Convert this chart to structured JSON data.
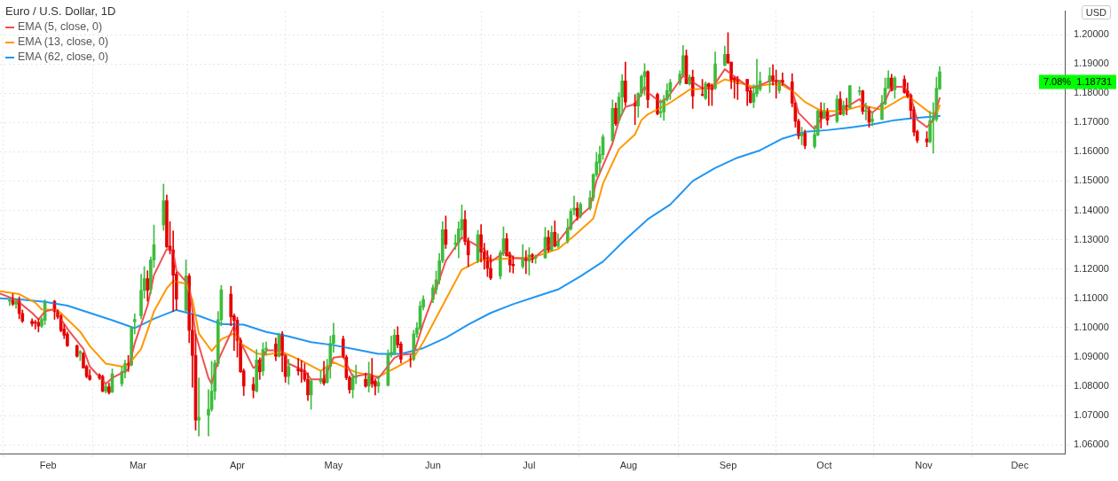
{
  "chart_data": {
    "type": "candlestick",
    "title": "Euro / U.S. Dollar, 1D",
    "ylabel": "USD",
    "grid": true,
    "legend": "top left",
    "xlim": [
      "--01-17",
      "--12-15"
    ],
    "xticks": [
      {
        "value": "--02-01",
        "label": "Feb"
      },
      {
        "value": "--03-01",
        "label": "Mar"
      },
      {
        "value": "--04-01",
        "label": "Apr"
      },
      {
        "value": "--05-01",
        "label": "May"
      },
      {
        "value": "--06-01",
        "label": "Jun"
      },
      {
        "value": "--07-01",
        "label": "Jul"
      },
      {
        "value": "--08-01",
        "label": "Aug"
      },
      {
        "value": "--09-01",
        "label": "Sep"
      },
      {
        "value": "--10-01",
        "label": "Oct"
      },
      {
        "value": "--11-01",
        "label": "Nov"
      },
      {
        "value": "--12-01",
        "label": "Dec"
      }
    ],
    "ylim": [
      1.057,
      1.208
    ],
    "yticks": [
      {
        "value": 1.06,
        "label": "1.06000"
      },
      {
        "value": 1.07,
        "label": "1.07000"
      },
      {
        "value": 1.08,
        "label": "1.08000"
      },
      {
        "value": 1.09,
        "label": "1.09000"
      },
      {
        "value": 1.1,
        "label": "1.10000"
      },
      {
        "value": 1.11,
        "label": "1.11000"
      },
      {
        "value": 1.12,
        "label": "1.12000"
      },
      {
        "value": 1.13,
        "label": "1.13000"
      },
      {
        "value": 1.14,
        "label": "1.14000"
      },
      {
        "value": 1.15,
        "label": "1.15000"
      },
      {
        "value": 1.16,
        "label": "1.16000"
      },
      {
        "value": 1.17,
        "label": "1.17000"
      },
      {
        "value": 1.18,
        "label": "1.18000"
      },
      {
        "value": 1.19,
        "label": "1.19000"
      },
      {
        "value": 1.2,
        "label": "1.20000"
      }
    ],
    "x": [
      "--01-20",
      "--01-21",
      "--01-22",
      "--01-23",
      "--01-24",
      "--01-27",
      "--01-28",
      "--01-29",
      "--01-30",
      "--01-31",
      "--02-03",
      "--02-04",
      "--02-05",
      "--02-06",
      "--02-07",
      "--02-10",
      "--02-11",
      "--02-12",
      "--02-13",
      "--02-14",
      "--02-17",
      "--02-18",
      "--02-19",
      "--02-20",
      "--02-21",
      "--02-24",
      "--02-25",
      "--02-26",
      "--02-27",
      "--02-28",
      "--03-02",
      "--03-03",
      "--03-04",
      "--03-05",
      "--03-06",
      "--03-09",
      "--03-10",
      "--03-11",
      "--03-12",
      "--03-13",
      "--03-16",
      "--03-17",
      "--03-18",
      "--03-19",
      "--03-20",
      "--03-23",
      "--03-24",
      "--03-25",
      "--03-26",
      "--03-27",
      "--03-30",
      "--03-31",
      "--04-01",
      "--04-02",
      "--04-03",
      "--04-06",
      "--04-07",
      "--04-08",
      "--04-09",
      "--04-10",
      "--04-13",
      "--04-14",
      "--04-15",
      "--04-16",
      "--04-17",
      "--04-20",
      "--04-21",
      "--04-22",
      "--04-23",
      "--04-24",
      "--04-27",
      "--04-28",
      "--04-29",
      "--04-30",
      "--05-01",
      "--05-04",
      "--05-05",
      "--05-06",
      "--05-07",
      "--05-08",
      "--05-11",
      "--05-12",
      "--05-13",
      "--05-14",
      "--05-15",
      "--05-18",
      "--05-19",
      "--05-20",
      "--05-21",
      "--05-22",
      "--05-25",
      "--05-26",
      "--05-27",
      "--05-28",
      "--05-29",
      "--06-01",
      "--06-02",
      "--06-03",
      "--06-04",
      "--06-05",
      "--06-08",
      "--06-09",
      "--06-10",
      "--06-11",
      "--06-12",
      "--06-15",
      "--06-16",
      "--06-17",
      "--06-18",
      "--06-19",
      "--06-22",
      "--06-23",
      "--06-24",
      "--06-25",
      "--06-26",
      "--06-29",
      "--06-30",
      "--07-01",
      "--07-02",
      "--07-03",
      "--07-06",
      "--07-07",
      "--07-08",
      "--07-09",
      "--07-10",
      "--07-13",
      "--07-14",
      "--07-15",
      "--07-16",
      "--07-17",
      "--07-20",
      "--07-21",
      "--07-22",
      "--07-23",
      "--07-24",
      "--07-27",
      "--07-28",
      "--07-29",
      "--07-30",
      "--07-31",
      "--08-03",
      "--08-04",
      "--08-05",
      "--08-06",
      "--08-07",
      "--08-10",
      "--08-11",
      "--08-12",
      "--08-13",
      "--08-14",
      "--08-17",
      "--08-18",
      "--08-19",
      "--08-20",
      "--08-21",
      "--08-24",
      "--08-25",
      "--08-26",
      "--08-27",
      "--08-28",
      "--08-31",
      "--09-01",
      "--09-02",
      "--09-03",
      "--09-04",
      "--09-07",
      "--09-08",
      "--09-09",
      "--09-10",
      "--09-11",
      "--09-14",
      "--09-15",
      "--09-16",
      "--09-17",
      "--09-18",
      "--09-21",
      "--09-22",
      "--09-23",
      "--09-24",
      "--09-25",
      "--09-28",
      "--09-29",
      "--09-30",
      "--10-01",
      "--10-02",
      "--10-05",
      "--10-06",
      "--10-07",
      "--10-08",
      "--10-09",
      "--10-12",
      "--10-13",
      "--10-14",
      "--10-15",
      "--10-16",
      "--10-19",
      "--10-20",
      "--10-21",
      "--10-22",
      "--10-23",
      "--10-26",
      "--10-27",
      "--10-28",
      "--10-29",
      "--10-30",
      "--11-02",
      "--11-03",
      "--11-04",
      "--11-05",
      "--11-06"
    ],
    "ohlc": [
      [
        1.109,
        1.11,
        1.1075,
        1.1093
      ],
      [
        1.1093,
        1.1115,
        1.1075,
        1.108
      ],
      [
        1.108,
        1.11,
        1.1065,
        1.109
      ],
      [
        1.109,
        1.1105,
        1.103,
        1.1048
      ],
      [
        1.1048,
        1.106,
        1.1017,
        1.1022
      ],
      [
        1.1022,
        1.103,
        1.1005,
        1.1013
      ],
      [
        1.1018,
        1.1025,
        1.0995,
        1.1015
      ],
      [
        1.1018,
        1.103,
        1.0985,
        1.1005
      ],
      [
        1.1005,
        1.1035,
        1.1,
        1.1028
      ],
      [
        1.1025,
        1.1095,
        1.101,
        1.109
      ],
      [
        1.109,
        1.1093,
        1.1028,
        1.1055
      ],
      [
        1.1055,
        1.106,
        1.103,
        1.1037
      ],
      [
        1.104,
        1.1045,
        1.0985,
        1.099
      ],
      [
        1.0995,
        1.101,
        1.0962,
        1.0974
      ],
      [
        1.0978,
        1.0985,
        1.0935,
        1.0938
      ],
      [
        1.0938,
        1.0941,
        1.0899,
        1.0902
      ],
      [
        1.0912,
        1.0922,
        1.0887,
        1.0918
      ],
      [
        1.0912,
        1.0915,
        1.0862,
        1.0862
      ],
      [
        1.0867,
        1.0872,
        1.0828,
        1.0833
      ],
      [
        1.0836,
        1.0857,
        1.082,
        1.0823
      ],
      [
        1.0838,
        1.0843,
        1.0823,
        1.0828
      ],
      [
        1.0833,
        1.0838,
        1.078,
        1.0783
      ],
      [
        1.0783,
        1.0808,
        1.0776,
        1.0798
      ],
      [
        1.0798,
        1.081,
        1.0773,
        1.0778
      ],
      [
        1.078,
        1.0859,
        1.0778,
        1.0842
      ],
      [
        1.0808,
        1.0867,
        1.08,
        1.085
      ],
      [
        1.0847,
        1.0889,
        1.0828,
        1.0877
      ],
      [
        1.0877,
        1.0905,
        1.085,
        1.0872
      ],
      [
        1.0872,
        1.1004,
        1.0869,
        1.0998
      ],
      [
        1.102,
        1.1047,
        1.0978,
        1.1028
      ],
      [
        1.104,
        1.1182,
        1.103,
        1.1127
      ],
      [
        1.1127,
        1.1208,
        1.11,
        1.1167
      ],
      [
        1.1167,
        1.1194,
        1.109,
        1.1127
      ],
      [
        1.113,
        1.1241,
        1.1115,
        1.1231
      ],
      [
        1.1231,
        1.135,
        1.1205,
        1.1283
      ],
      [
        1.135,
        1.149,
        1.1332,
        1.1433
      ],
      [
        1.1433,
        1.1453,
        1.1273,
        1.1275
      ],
      [
        1.1278,
        1.1362,
        1.1251,
        1.1263
      ],
      [
        1.1265,
        1.133,
        1.1055,
        1.1179
      ],
      [
        1.1182,
        1.1189,
        1.106,
        1.1097
      ],
      [
        1.1059,
        1.1231,
        1.1055,
        1.1176
      ],
      [
        1.1176,
        1.1184,
        1.0948,
        1.0991
      ],
      [
        1.0991,
        1.1045,
        1.0796,
        1.0905
      ],
      [
        1.0905,
        1.0978,
        1.065,
        1.0684
      ],
      [
        1.0684,
        1.0828,
        1.063,
        1.0694
      ],
      [
        1.0701,
        1.0788,
        1.063,
        1.0721
      ],
      [
        1.0721,
        1.0885,
        1.0714,
        1.0783
      ],
      [
        1.0783,
        1.0889,
        1.0754,
        1.0879
      ],
      [
        1.0877,
        1.1055,
        1.0867,
        1.1027
      ],
      [
        1.1027,
        1.1144,
        1.1006,
        1.1129
      ],
      [
        1.1114,
        1.1141,
        1.1006,
        1.1037
      ],
      [
        1.104,
        1.1047,
        1.0922,
        1.1024
      ],
      [
        1.1025,
        1.1035,
        1.0899,
        1.0956
      ],
      [
        1.0956,
        1.0964,
        1.0847,
        1.0849
      ],
      [
        1.0852,
        1.0859,
        1.0768,
        1.08
      ],
      [
        1.0806,
        1.083,
        1.076,
        1.0786
      ],
      [
        1.0783,
        1.0925,
        1.078,
        1.0889
      ],
      [
        1.0889,
        1.0897,
        1.0823,
        1.0849
      ],
      [
        1.0852,
        1.0948,
        1.0836,
        1.0925
      ],
      [
        1.0925,
        1.0951,
        1.0907,
        1.093
      ],
      [
        1.0944,
        1.0964,
        1.0887,
        1.0902
      ],
      [
        1.0902,
        1.0981,
        1.0899,
        1.0978
      ],
      [
        1.0978,
        1.0986,
        1.0849,
        1.0905
      ],
      [
        1.0905,
        1.0907,
        1.0813,
        1.0833
      ],
      [
        1.0833,
        1.0892,
        1.0806,
        1.0867
      ],
      [
        1.0859,
        1.0895,
        1.0838,
        1.0852
      ],
      [
        1.0856,
        1.0887,
        1.0813,
        1.085
      ],
      [
        1.0852,
        1.0877,
        1.0816,
        1.0823
      ],
      [
        1.0823,
        1.0846,
        1.0751,
        1.077
      ],
      [
        1.077,
        1.0823,
        1.0721,
        1.0818
      ],
      [
        1.0816,
        1.0852,
        1.0808,
        1.0826
      ],
      [
        1.0826,
        1.0885,
        1.0803,
        1.081
      ],
      [
        1.0813,
        1.0892,
        1.081,
        1.0867
      ],
      [
        1.0867,
        1.0971,
        1.0827,
        1.0946
      ],
      [
        1.0946,
        1.1015,
        1.0916,
        1.0974
      ],
      [
        1.0961,
        1.0971,
        1.0897,
        1.0899
      ],
      [
        1.0899,
        1.0906,
        1.0822,
        1.0829
      ],
      [
        1.0829,
        1.0835,
        1.0776,
        1.0788
      ],
      [
        1.0788,
        1.0842,
        1.076,
        1.0829
      ],
      [
        1.0829,
        1.0872,
        1.0808,
        1.0834
      ],
      [
        1.0823,
        1.0845,
        1.0796,
        1.08
      ],
      [
        1.08,
        1.0882,
        1.078,
        1.0842
      ],
      [
        1.0837,
        1.0895,
        1.0796,
        1.0808
      ],
      [
        1.0817,
        1.0825,
        1.077,
        1.08
      ],
      [
        1.08,
        1.0835,
        1.0778,
        1.0813
      ],
      [
        1.0803,
        1.0924,
        1.08,
        1.0908
      ],
      [
        1.0906,
        1.0971,
        1.0899,
        1.0916
      ],
      [
        1.0914,
        1.0994,
        1.0906,
        1.0974
      ],
      [
        1.0974,
        1.1003,
        1.0931,
        1.0941
      ],
      [
        1.0944,
        1.0951,
        1.0879,
        1.0892
      ],
      [
        1.0892,
        1.0906,
        1.0865,
        1.089
      ],
      [
        1.0892,
        1.0991,
        1.0887,
        1.0978
      ],
      [
        1.0978,
        1.1017,
        1.0966,
        1.0999
      ],
      [
        1.0997,
        1.1089,
        1.0991,
        1.1073
      ],
      [
        1.107,
        1.1109,
        1.106,
        1.1096
      ],
      [
        1.1096,
        1.1146,
        1.1085,
        1.1136
      ],
      [
        1.1129,
        1.1193,
        1.1114,
        1.1163
      ],
      [
        1.1162,
        1.1253,
        1.1149,
        1.1228
      ],
      [
        1.1228,
        1.1361,
        1.1221,
        1.1334
      ],
      [
        1.1334,
        1.1381,
        1.127,
        1.1284
      ],
      [
        1.1285,
        1.1317,
        1.1267,
        1.1289
      ],
      [
        1.1289,
        1.1361,
        1.1238,
        1.1337
      ],
      [
        1.1334,
        1.1419,
        1.1307,
        1.1369
      ],
      [
        1.1369,
        1.1399,
        1.1282,
        1.1294
      ],
      [
        1.1294,
        1.1307,
        1.1208,
        1.1248
      ],
      [
        1.1228,
        1.1332,
        1.1221,
        1.1317
      ],
      [
        1.1317,
        1.1351,
        1.1223,
        1.1258
      ],
      [
        1.1258,
        1.1288,
        1.1199,
        1.1233
      ],
      [
        1.1238,
        1.1263,
        1.1174,
        1.1202
      ],
      [
        1.1202,
        1.1248,
        1.1164,
        1.1169
      ],
      [
        1.1176,
        1.1263,
        1.1166,
        1.1255
      ],
      [
        1.1253,
        1.1344,
        1.1245,
        1.1303
      ],
      [
        1.1303,
        1.1321,
        1.1243,
        1.1245
      ],
      [
        1.1248,
        1.1258,
        1.1189,
        1.1214
      ],
      [
        1.1216,
        1.1245,
        1.1186,
        1.1211
      ],
      [
        1.1209,
        1.1283,
        1.1202,
        1.1238
      ],
      [
        1.1236,
        1.1263,
        1.1184,
        1.1229
      ],
      [
        1.1226,
        1.1273,
        1.1179,
        1.1248
      ],
      [
        1.1248,
        1.1253,
        1.1221,
        1.1233
      ],
      [
        1.1236,
        1.1248,
        1.1219,
        1.1241
      ],
      [
        1.1238,
        1.1342,
        1.1236,
        1.1308
      ],
      [
        1.1308,
        1.1331,
        1.1258,
        1.1265
      ],
      [
        1.1263,
        1.1347,
        1.1263,
        1.1325
      ],
      [
        1.1325,
        1.1364,
        1.1275,
        1.1278
      ],
      [
        1.1278,
        1.132,
        1.1273,
        1.1295
      ],
      [
        1.1295,
        1.1371,
        1.1288,
        1.134
      ],
      [
        1.1337,
        1.1406,
        1.1332,
        1.1397
      ],
      [
        1.14,
        1.1449,
        1.1384,
        1.1407
      ],
      [
        1.1407,
        1.1427,
        1.1367,
        1.138
      ],
      [
        1.138,
        1.1427,
        1.1374,
        1.1421
      ],
      [
        1.1407,
        1.1466,
        1.1402,
        1.1443
      ],
      [
        1.1443,
        1.1525,
        1.1433,
        1.1522
      ],
      [
        1.1522,
        1.1598,
        1.1515,
        1.1565
      ],
      [
        1.1562,
        1.1619,
        1.1532,
        1.1591
      ],
      [
        1.159,
        1.1659,
        1.1574,
        1.1651
      ],
      [
        1.1637,
        1.1777,
        1.1637,
        1.1748
      ],
      [
        1.1748,
        1.1767,
        1.169,
        1.1696
      ],
      [
        1.1708,
        1.1802,
        1.1698,
        1.1787
      ],
      [
        1.1787,
        1.1864,
        1.1726,
        1.1842
      ],
      [
        1.1842,
        1.1906,
        1.1758,
        1.177
      ],
      [
        1.1766,
        1.1795,
        1.1693,
        1.1756
      ],
      [
        1.1756,
        1.1802,
        1.1718,
        1.1799
      ],
      [
        1.1799,
        1.1862,
        1.1789,
        1.1857
      ],
      [
        1.1857,
        1.1901,
        1.1793,
        1.1874
      ],
      [
        1.1874,
        1.1877,
        1.175,
        1.1778
      ],
      [
        1.1796,
        1.18,
        1.1726,
        1.173
      ],
      [
        1.1733,
        1.1778,
        1.1718,
        1.1738
      ],
      [
        1.1736,
        1.1793,
        1.1707,
        1.1778
      ],
      [
        1.1778,
        1.1832,
        1.1773,
        1.1809
      ],
      [
        1.1807,
        1.1847,
        1.1778,
        1.1837
      ],
      [
        1.1835,
        1.1877,
        1.1827,
        1.1865
      ],
      [
        1.1862,
        1.1963,
        1.1862,
        1.1928
      ],
      [
        1.1928,
        1.1948,
        1.1832,
        1.1832
      ],
      [
        1.1832,
        1.1862,
        1.1827,
        1.1855
      ],
      [
        1.1855,
        1.1879,
        1.1748,
        1.179
      ],
      [
        1.1796,
        1.1847,
        1.179,
        1.1793
      ],
      [
        1.1783,
        1.1839,
        1.1778,
        1.1832
      ],
      [
        1.1832,
        1.1835,
        1.1758,
        1.1822
      ],
      [
        1.1827,
        1.1832,
        1.1758,
        1.1812
      ],
      [
        1.1817,
        1.1941,
        1.1812,
        1.19
      ],
      [
        1.1895,
        1.1961,
        1.1893,
        1.1933
      ],
      [
        1.1933,
        1.2007,
        1.1901,
        1.1904
      ],
      [
        1.1906,
        1.1906,
        1.1815,
        1.1847
      ],
      [
        1.1852,
        1.1855,
        1.1783,
        1.1845
      ],
      [
        1.1847,
        1.1857,
        1.1778,
        1.1832
      ],
      [
        1.1847,
        1.1847,
        1.1758,
        1.1807
      ],
      [
        1.1809,
        1.1817,
        1.1766,
        1.1768
      ],
      [
        1.177,
        1.1829,
        1.175,
        1.18
      ],
      [
        1.1798,
        1.1916,
        1.1788,
        1.1827
      ],
      [
        1.1814,
        1.1872,
        1.1807,
        1.1842
      ],
      [
        1.1839,
        1.1887,
        1.1802,
        1.1859
      ],
      [
        1.1859,
        1.1897,
        1.1827,
        1.1842
      ],
      [
        1.1845,
        1.1879,
        1.1783,
        1.1837
      ],
      [
        1.1809,
        1.1845,
        1.18,
        1.1844
      ],
      [
        1.1844,
        1.1869,
        1.1827,
        1.1837
      ],
      [
        1.1839,
        1.1867,
        1.1753,
        1.1766
      ],
      [
        1.1766,
        1.1768,
        1.1684,
        1.1704
      ],
      [
        1.1704,
        1.1711,
        1.1644,
        1.1654
      ],
      [
        1.1654,
        1.1684,
        1.1624,
        1.1664
      ],
      [
        1.1664,
        1.1674,
        1.161,
        1.1621
      ],
      [
        1.1618,
        1.1689,
        1.1612,
        1.1659
      ],
      [
        1.1657,
        1.1743,
        1.1654,
        1.174
      ],
      [
        1.1738,
        1.1768,
        1.1681,
        1.1716
      ],
      [
        1.1716,
        1.1766,
        1.1714,
        1.1738
      ],
      [
        1.1738,
        1.1748,
        1.1691,
        1.1708
      ],
      [
        1.1704,
        1.1793,
        1.1699,
        1.178
      ],
      [
        1.178,
        1.1805,
        1.1726,
        1.1728
      ],
      [
        1.1728,
        1.1773,
        1.1723,
        1.1758
      ],
      [
        1.1758,
        1.1783,
        1.1726,
        1.1755
      ],
      [
        1.175,
        1.1827,
        1.1748,
        1.1825
      ],
      [
        1.1805,
        1.1822,
        1.1793,
        1.1808
      ],
      [
        1.1808,
        1.181,
        1.1728,
        1.1738
      ],
      [
        1.1738,
        1.1766,
        1.1709,
        1.1741
      ],
      [
        1.174,
        1.1753,
        1.1684,
        1.1701
      ],
      [
        1.1704,
        1.1738,
        1.1689,
        1.1711
      ],
      [
        1.1711,
        1.1793,
        1.1709,
        1.1766
      ],
      [
        1.1763,
        1.1852,
        1.176,
        1.1817
      ],
      [
        1.1817,
        1.1877,
        1.1815,
        1.1852
      ],
      [
        1.1852,
        1.1865,
        1.1807,
        1.1809
      ],
      [
        1.1812,
        1.1857,
        1.1783,
        1.1852
      ],
      [
        1.1847,
        1.1859,
        1.1799,
        1.1802
      ],
      [
        1.1807,
        1.1835,
        1.1786,
        1.1788
      ],
      [
        1.1793,
        1.1798,
        1.1714,
        1.1741
      ],
      [
        1.1743,
        1.1753,
        1.1654,
        1.1667
      ],
      [
        1.1669,
        1.1674,
        1.1631,
        1.1639
      ],
      [
        1.1644,
        1.1669,
        1.1617,
        1.1634
      ],
      [
        1.1634,
        1.1738,
        1.1631,
        1.1707
      ],
      [
        1.1707,
        1.1768,
        1.1595,
        1.1716
      ],
      [
        1.1711,
        1.1855,
        1.1704,
        1.1817
      ],
      [
        1.1815,
        1.1891,
        1.1812,
        1.18731
      ]
    ],
    "series": [
      {
        "name": "EMA (5, close, 0)",
        "type": "line",
        "color": "#f05050",
        "x": [
          "--01-17",
          "--01-22",
          "--01-27",
          "--01-29",
          "--01-31",
          "--02-03",
          "--02-07",
          "--02-12",
          "--02-14",
          "--02-19",
          "--02-21",
          "--02-26",
          "--02-28",
          "--03-04",
          "--03-06",
          "--03-10",
          "--03-12",
          "--03-13",
          "--03-17",
          "--03-19",
          "--03-23",
          "--03-24",
          "--03-26",
          "--03-31",
          "--04-02",
          "--04-06",
          "--04-08",
          "--04-10",
          "--04-15",
          "--04-17",
          "--04-22",
          "--04-24",
          "--04-28",
          "--05-01",
          "--05-04",
          "--05-07",
          "--05-12",
          "--05-15",
          "--05-20",
          "--05-22",
          "--05-26",
          "--05-29",
          "--06-03",
          "--06-05",
          "--06-10",
          "--06-12",
          "--06-16",
          "--06-17",
          "--06-19",
          "--06-24",
          "--06-26",
          "--07-02",
          "--07-08",
          "--07-10",
          "--07-15",
          "--07-20",
          "--07-22",
          "--07-27",
          "--07-29",
          "--07-31",
          "--08-03",
          "--08-05",
          "--08-06",
          "--08-07",
          "--08-11",
          "--08-13",
          "--08-18",
          "--08-19",
          "--08-24",
          "--08-27",
          "--08-31",
          "--09-03",
          "--09-08",
          "--09-10",
          "--09-14",
          "--09-17",
          "--09-21",
          "--09-23",
          "--09-28",
          "--09-30",
          "--10-05",
          "--10-08",
          "--10-12",
          "--10-14",
          "--10-16",
          "--10-20",
          "--10-22",
          "--10-26",
          "--10-28",
          "--10-30",
          "--11-02",
          "--11-04",
          "--11-06"
        ],
        "values": [
          1.1116,
          1.1095,
          1.105,
          1.1028,
          1.1055,
          1.1063,
          1.0996,
          1.0927,
          1.0867,
          1.0808,
          1.0828,
          1.0857,
          1.0946,
          1.1075,
          1.1179,
          1.1268,
          1.1261,
          1.1194,
          1.1144,
          1.0976,
          1.0828,
          1.0808,
          1.0887,
          1.1006,
          1.0951,
          1.0862,
          1.0877,
          1.0922,
          1.0922,
          1.0877,
          1.0852,
          1.0823,
          1.0823,
          1.0897,
          1.0902,
          1.0832,
          1.0842,
          1.0827,
          1.0897,
          1.0907,
          1.0911,
          1.1015,
          1.1164,
          1.1228,
          1.1307,
          1.1297,
          1.1272,
          1.1268,
          1.1224,
          1.1263,
          1.1238,
          1.1233,
          1.1288,
          1.1293,
          1.1362,
          1.1411,
          1.1501,
          1.1629,
          1.1708,
          1.1753,
          1.1763,
          1.1797,
          1.1822,
          1.1803,
          1.1768,
          1.1783,
          1.1859,
          1.1852,
          1.1817,
          1.1817,
          1.1882,
          1.1857,
          1.1817,
          1.1822,
          1.1842,
          1.1842,
          1.181,
          1.1733,
          1.1677,
          1.1713,
          1.1728,
          1.1753,
          1.178,
          1.1753,
          1.1733,
          1.1773,
          1.1822,
          1.1822,
          1.1788,
          1.1709,
          1.1684,
          1.1709,
          1.1783
        ]
      },
      {
        "name": "EMA (13, close, 0)",
        "type": "line",
        "color": "#ff9800",
        "x": [
          "--01-17",
          "--01-23",
          "--01-28",
          "--01-30",
          "--02-04",
          "--02-11",
          "--02-14",
          "--02-19",
          "--02-24",
          "--02-26",
          "--03-02",
          "--03-04",
          "--03-06",
          "--03-10",
          "--03-12",
          "--03-16",
          "--03-18",
          "--03-20",
          "--03-24",
          "--03-27",
          "--03-31",
          "--04-02",
          "--04-07",
          "--04-10",
          "--04-15",
          "--04-21",
          "--04-27",
          "--05-01",
          "--05-08",
          "--05-15",
          "--05-21",
          "--05-26",
          "--05-29",
          "--06-04",
          "--06-10",
          "--06-16",
          "--06-24",
          "--07-02",
          "--07-10",
          "--07-15",
          "--07-21",
          "--07-24",
          "--07-29",
          "--08-03",
          "--08-05",
          "--08-07",
          "--08-14",
          "--08-18",
          "--08-20",
          "--08-26",
          "--08-31",
          "--09-04",
          "--09-09",
          "--09-15",
          "--09-18",
          "--09-22",
          "--09-25",
          "--09-30",
          "--10-06",
          "--10-13",
          "--10-19",
          "--10-26",
          "--10-28",
          "--11-03",
          "--11-05",
          "--11-06"
        ],
        "values": [
          1.1124,
          1.1114,
          1.1085,
          1.1062,
          1.106,
          1.0986,
          1.0937,
          1.0877,
          1.0867,
          1.0872,
          1.0927,
          1.099,
          1.1055,
          1.1134,
          1.1159,
          1.115,
          1.1095,
          1.098,
          1.092,
          1.096,
          1.098,
          1.0946,
          1.0912,
          1.0907,
          1.0917,
          1.0887,
          1.0852,
          1.0882,
          1.0847,
          1.0832,
          1.0867,
          1.0897,
          1.0951,
          1.1075,
          1.1198,
          1.1231,
          1.1235,
          1.1239,
          1.1268,
          1.1313,
          1.1372,
          1.1491,
          1.1609,
          1.1659,
          1.1708,
          1.1728,
          1.1768,
          1.1797,
          1.1812,
          1.1817,
          1.1847,
          1.1837,
          1.1822,
          1.1832,
          1.1827,
          1.18,
          1.177,
          1.174,
          1.1738,
          1.1758,
          1.1743,
          1.1788,
          1.1783,
          1.1733,
          1.1728,
          1.1758
        ]
      },
      {
        "name": "EMA (62, close, 0)",
        "type": "line",
        "color": "#2196f3",
        "x": [
          "--01-17",
          "--01-24",
          "--01-31",
          "--02-07",
          "--02-14",
          "--02-21",
          "--02-28",
          "--03-06",
          "--03-13",
          "--03-20",
          "--03-27",
          "--04-03",
          "--04-10",
          "--04-17",
          "--04-24",
          "--05-01",
          "--05-08",
          "--05-15",
          "--05-22",
          "--05-29",
          "--06-05",
          "--06-12",
          "--06-19",
          "--06-26",
          "--07-03",
          "--07-10",
          "--07-17",
          "--07-24",
          "--07-31",
          "--08-07",
          "--08-14",
          "--08-21",
          "--08-28",
          "--09-04",
          "--09-11",
          "--09-18",
          "--09-25",
          "--10-02",
          "--10-09",
          "--10-16",
          "--10-23",
          "--10-30",
          "--11-06"
        ],
        "values": [
          1.11,
          1.1095,
          1.1088,
          1.1075,
          1.105,
          1.1025,
          1.0998,
          1.103,
          1.106,
          1.104,
          1.1012,
          1.101,
          1.0985,
          1.097,
          1.095,
          1.094,
          1.0925,
          1.091,
          1.091,
          1.093,
          1.0965,
          1.101,
          1.105,
          1.108,
          1.1105,
          1.113,
          1.1175,
          1.1225,
          1.13,
          1.137,
          1.142,
          1.15,
          1.1545,
          1.158,
          1.1605,
          1.1645,
          1.1668,
          1.1674,
          1.1683,
          1.1693,
          1.1708,
          1.1716,
          1.1722
        ]
      }
    ],
    "annotations": [
      "7.08%  1.18731"
    ]
  }
}
